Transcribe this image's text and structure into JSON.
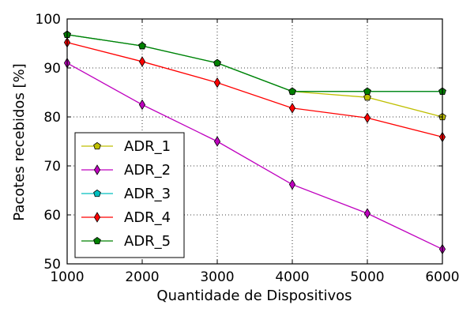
{
  "chart_data": {
    "type": "line",
    "title": "",
    "xlabel": "Quantidade de Dispositivos",
    "ylabel": "Pacotes recebidos [%]",
    "xlim": [
      1000,
      6000
    ],
    "ylim": [
      50,
      100
    ],
    "x_ticks": [
      "1000",
      "2000",
      "3000",
      "4000",
      "5000",
      "6000"
    ],
    "y_ticks": [
      "50",
      "60",
      "70",
      "80",
      "90",
      "100"
    ],
    "grid": true,
    "legend_position": "bottom-left",
    "x": [
      1000,
      2000,
      3000,
      4000,
      5000,
      6000
    ],
    "series": [
      {
        "name": "ADR_1",
        "color": "#bfbf00",
        "marker": "pentagon",
        "values": [
          96.8,
          94.5,
          91.0,
          85.2,
          84.0,
          80.0
        ]
      },
      {
        "name": "ADR_2",
        "color": "#bf00bf",
        "marker": "thin-diamond",
        "values": [
          91.0,
          82.5,
          75.0,
          66.2,
          60.3,
          53.0
        ]
      },
      {
        "name": "ADR_3",
        "color": "#00bfbf",
        "marker": "pentagon",
        "values": [
          96.8,
          94.5,
          91.0,
          85.2,
          85.2,
          85.2
        ]
      },
      {
        "name": "ADR_4",
        "color": "#ff0000",
        "marker": "thin-diamond",
        "values": [
          95.2,
          91.3,
          87.0,
          81.8,
          79.8,
          75.9
        ]
      },
      {
        "name": "ADR_5",
        "color": "#008000",
        "marker": "pentagon",
        "values": [
          96.8,
          94.5,
          91.0,
          85.2,
          85.2,
          85.2
        ]
      }
    ]
  }
}
